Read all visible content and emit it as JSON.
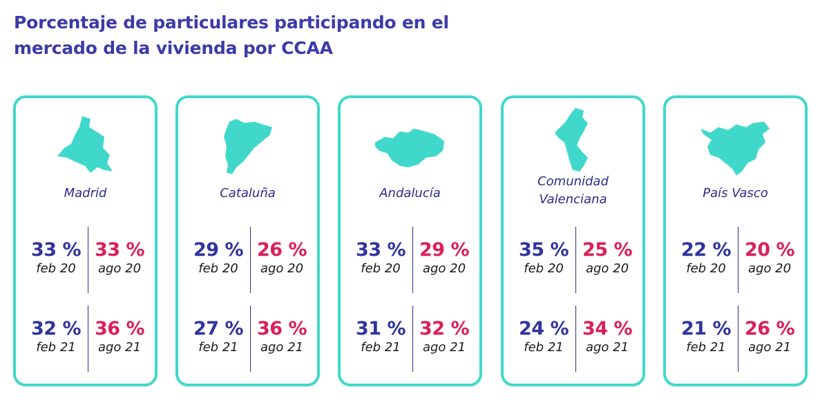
{
  "title": "Porcentaje de particulares participando en el mercado de la vivienda por CCAA",
  "colors": {
    "accent": "#3fd8cb",
    "feb_color": "#31349d",
    "ago_color": "#db2057",
    "title_color": "#3c3aa8"
  },
  "chart_data": {
    "type": "table",
    "title": "Porcentaje de particulares participando en el mercado de la vivienda por CCAA",
    "periods": [
      "feb 20",
      "ago 20",
      "feb 21",
      "ago 21"
    ],
    "unit": "%",
    "regions": [
      {
        "name": "Madrid",
        "icon": "madrid-map-icon",
        "values": [
          "33 %",
          "33 %",
          "32 %",
          "36 %"
        ],
        "numeric": [
          33,
          33,
          32,
          36
        ]
      },
      {
        "name": "Cataluña",
        "icon": "cataluna-map-icon",
        "values": [
          "29 %",
          "26 %",
          "27 %",
          "36 %"
        ],
        "numeric": [
          29,
          26,
          27,
          36
        ]
      },
      {
        "name": "Andalucía",
        "icon": "andalucia-map-icon",
        "values": [
          "33 %",
          "29 %",
          "31 %",
          "32 %"
        ],
        "numeric": [
          33,
          29,
          31,
          32
        ]
      },
      {
        "name": "Comunidad Valenciana",
        "name_lines": [
          "Comunidad",
          "Valenciana"
        ],
        "icon": "valencia-map-icon",
        "values": [
          "35 %",
          "25 %",
          "24 %",
          "34 %"
        ],
        "numeric": [
          35,
          25,
          24,
          34
        ]
      },
      {
        "name": "País Vasco",
        "icon": "pais-vasco-map-icon",
        "values": [
          "22 %",
          "20 %",
          "21 %",
          "26 %"
        ],
        "numeric": [
          22,
          20,
          21,
          26
        ]
      }
    ]
  }
}
